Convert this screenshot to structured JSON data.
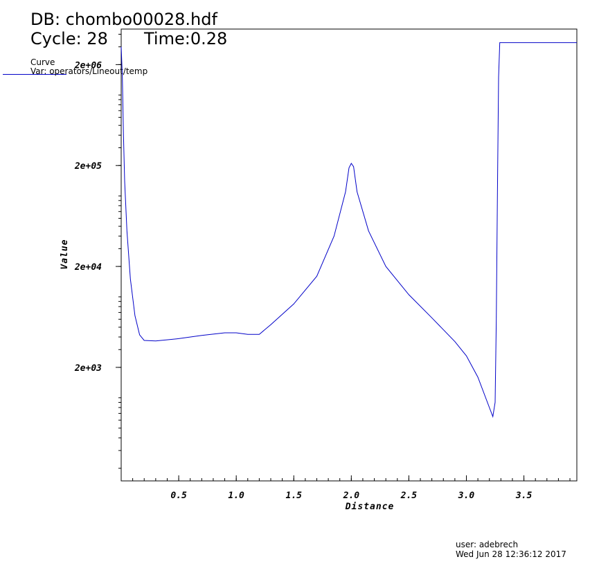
{
  "header": {
    "db_line": "DB: chombo00028.hdf",
    "cycle_line": "Cycle: 28",
    "time_label": "Time:0.28"
  },
  "legend": {
    "title": "Curve",
    "var": "Var: operators/Lineout/temp",
    "line_color": "#0000c8"
  },
  "footer": {
    "user": "user: adebrech",
    "date": "Wed Jun 28 12:36:12 2017"
  },
  "chart_data": {
    "type": "line",
    "xlabel": "Distance",
    "ylabel": "Value",
    "yscale": "log",
    "xlim": [
      0,
      3.96
    ],
    "ylim": [
      150,
      4500000
    ],
    "x_ticks": [
      0.5,
      1.0,
      1.5,
      2.0,
      2.5,
      3.0,
      3.5
    ],
    "x_tick_labels": [
      "0.5",
      "1.0",
      "1.5",
      "2.0",
      "2.5",
      "3.0",
      "3.5"
    ],
    "y_ticks": [
      2000,
      20000,
      200000,
      2000000
    ],
    "y_tick_labels": [
      "2e+03",
      "2e+04",
      "2e+05",
      "2e+06"
    ],
    "grid": false,
    "series": [
      {
        "color": "#0000c8",
        "points": [
          [
            0.0,
            3000000
          ],
          [
            0.01,
            1500000
          ],
          [
            0.02,
            400000
          ],
          [
            0.03,
            140000
          ],
          [
            0.05,
            45000
          ],
          [
            0.08,
            15000
          ],
          [
            0.12,
            6500
          ],
          [
            0.16,
            4200
          ],
          [
            0.2,
            3700
          ],
          [
            0.3,
            3650
          ],
          [
            0.5,
            3850
          ],
          [
            0.7,
            4150
          ],
          [
            0.9,
            4400
          ],
          [
            1.0,
            4400
          ],
          [
            1.1,
            4250
          ],
          [
            1.2,
            4250
          ],
          [
            1.3,
            5300
          ],
          [
            1.5,
            8500
          ],
          [
            1.7,
            16000
          ],
          [
            1.85,
            40000
          ],
          [
            1.95,
            110000
          ],
          [
            1.98,
            190000
          ],
          [
            2.0,
            210000
          ],
          [
            2.02,
            195000
          ],
          [
            2.05,
            110000
          ],
          [
            2.15,
            45000
          ],
          [
            2.3,
            20000
          ],
          [
            2.5,
            10500
          ],
          [
            2.7,
            6200
          ],
          [
            2.9,
            3600
          ],
          [
            3.0,
            2600
          ],
          [
            3.1,
            1600
          ],
          [
            3.2,
            800
          ],
          [
            3.23,
            650
          ],
          [
            3.25,
            900
          ],
          [
            3.26,
            6000
          ],
          [
            3.27,
            100000
          ],
          [
            3.28,
            1500000
          ],
          [
            3.29,
            3300000
          ],
          [
            3.35,
            3300000
          ],
          [
            3.96,
            3300000
          ]
        ]
      }
    ]
  }
}
